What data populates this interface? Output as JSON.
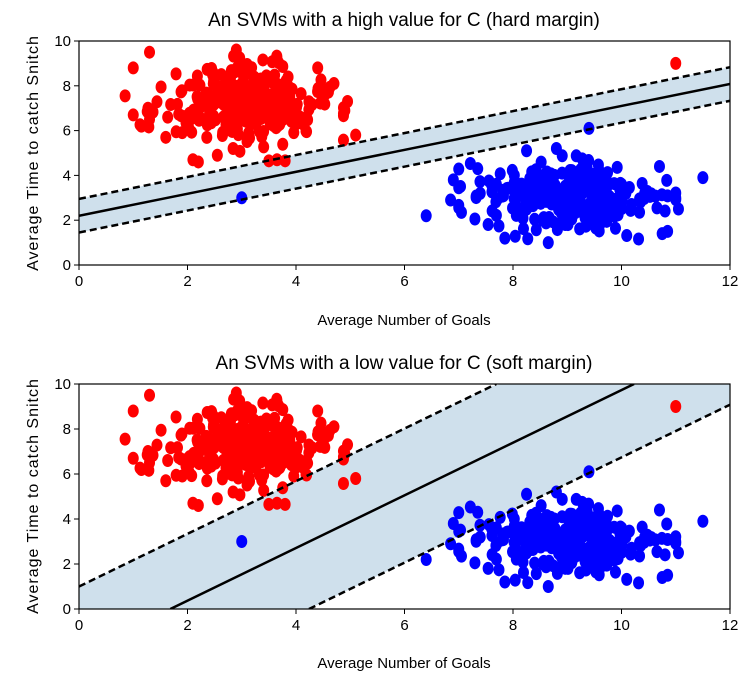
{
  "chart_data": [
    {
      "type": "scatter",
      "title": "An SVMs with a high value for C (hard margin)",
      "xlabel": "Average Number of Goals",
      "ylabel": "Average Time to catch Snitch",
      "xlim": [
        0,
        12
      ],
      "ylim": [
        0,
        10
      ],
      "xticks": [
        "0",
        "2",
        "4",
        "6",
        "8",
        "10",
        "12"
      ],
      "yticks": [
        "0",
        "2",
        "4",
        "6",
        "8",
        "10"
      ],
      "grid": false,
      "decision_boundary": {
        "intercept": 2.2,
        "slope": 0.49
      },
      "margin_upper": {
        "intercept": 2.95,
        "slope": 0.49
      },
      "margin_lower": {
        "intercept": 1.45,
        "slope": 0.49
      },
      "margin_fill": "#cfe0ec",
      "series": [
        {
          "color": "#ff0000",
          "cluster": {
            "center": [
              3.0,
              7.2
            ],
            "spread": [
              0.75,
              0.85
            ],
            "count": 320
          },
          "points": [
            [
              11,
              9
            ],
            [
              1.3,
              9.5
            ],
            [
              1.0,
              8.8
            ],
            [
              0.85,
              7.55
            ],
            [
              1.0,
              6.7
            ],
            [
              1.15,
              6.2
            ],
            [
              1.3,
              6.5
            ],
            [
              1.6,
              5.7
            ],
            [
              2.1,
              4.7
            ],
            [
              2.2,
              4.6
            ],
            [
              2.55,
              4.9
            ],
            [
              2.9,
              9.6
            ],
            [
              3.5,
              4.65
            ],
            [
              3.65,
              4.7
            ],
            [
              3.8,
              4.65
            ],
            [
              5.1,
              5.8
            ],
            [
              4.9,
              6.9
            ],
            [
              4.95,
              7.3
            ],
            [
              4.7,
              8.1
            ],
            [
              4.4,
              8.8
            ]
          ]
        },
        {
          "color": "#0000ff",
          "cluster": {
            "center": [
              9.0,
              3.0
            ],
            "spread": [
              0.8,
              0.75
            ],
            "count": 320
          },
          "points": [
            [
              3.0,
              3.0
            ],
            [
              11.5,
              3.9
            ],
            [
              6.4,
              2.2
            ],
            [
              6.85,
              2.9
            ],
            [
              6.9,
              3.8
            ],
            [
              7.05,
              2.35
            ],
            [
              9.4,
              6.1
            ],
            [
              8.25,
              5.1
            ],
            [
              8.8,
              5.2
            ],
            [
              7.35,
              4.3
            ],
            [
              10.75,
              1.4
            ],
            [
              10.85,
              1.5
            ],
            [
              11.0,
              3.0
            ],
            [
              11.05,
              2.5
            ],
            [
              8.65,
              1.0
            ],
            [
              7.85,
              1.2
            ],
            [
              10.7,
              4.4
            ]
          ]
        }
      ]
    },
    {
      "type": "scatter",
      "title": "An SVMs with a low value for C (soft margin)",
      "xlabel": "Average Number of Goals",
      "ylabel": "Average Time to catch Snitch",
      "xlim": [
        0,
        12
      ],
      "ylim": [
        0,
        10
      ],
      "xticks": [
        "0",
        "2",
        "4",
        "6",
        "8",
        "10",
        "12"
      ],
      "yticks": [
        "0",
        "2",
        "4",
        "6",
        "8",
        "10"
      ],
      "grid": false,
      "decision_boundary": {
        "intercept": -1.97,
        "slope": 1.17
      },
      "margin_upper": {
        "intercept": 1.0,
        "slope": 1.17
      },
      "margin_lower": {
        "intercept": -4.96,
        "slope": 1.17
      },
      "margin_fill": "#cfe0ec",
      "series": "same as first panel"
    }
  ]
}
